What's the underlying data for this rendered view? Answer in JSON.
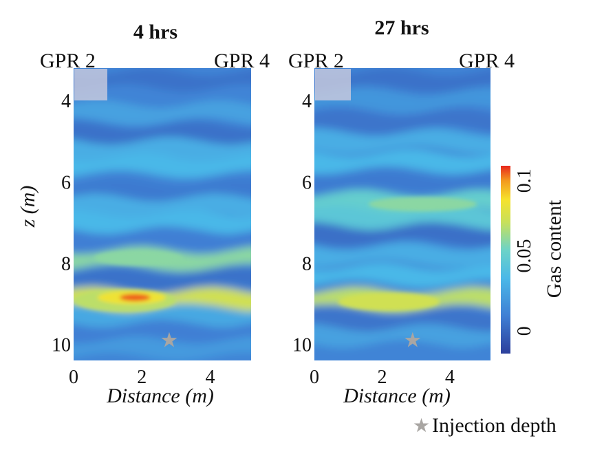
{
  "chart_data": [
    {
      "type": "heatmap",
      "title": "4 hrs",
      "xlabel": "Distance (m)",
      "ylabel": "z (m)",
      "xlim": [
        0,
        5.2
      ],
      "ylim": [
        3.2,
        10.4
      ],
      "xticks": [
        0,
        2,
        4
      ],
      "yticks": [
        4,
        6,
        8,
        10
      ],
      "borehole_labels": [
        "GPR 2",
        "GPR 4"
      ],
      "injection_point": {
        "x": 2.8,
        "z": 9.9
      },
      "bands": [
        {
          "z": 3.5,
          "gas": 0.005
        },
        {
          "z": 3.9,
          "gas": 0.012
        },
        {
          "z": 4.3,
          "gas": 0.025
        },
        {
          "z": 4.8,
          "gas": 0.005
        },
        {
          "z": 5.2,
          "gas": 0.03
        },
        {
          "z": 5.6,
          "gas": 0.035
        },
        {
          "z": 6.2,
          "gas": 0.008
        },
        {
          "z": 6.6,
          "gas": 0.03
        },
        {
          "z": 7.0,
          "gas": 0.035
        },
        {
          "z": 7.4,
          "gas": 0.01
        },
        {
          "z": 7.9,
          "gas": 0.06
        },
        {
          "z": 8.4,
          "gas": 0.005
        },
        {
          "z": 8.9,
          "gas": 0.075
        },
        {
          "z": 9.3,
          "gas": 0.028
        },
        {
          "z": 9.7,
          "gas": 0.01
        },
        {
          "z": 10.1,
          "gas": 0.022
        }
      ],
      "hotspots": [
        {
          "x": 1.5,
          "z": 8.92,
          "rx": 1.5,
          "rz": 0.28,
          "gas": 0.07
        },
        {
          "x": 1.7,
          "z": 8.85,
          "rx": 1.0,
          "rz": 0.17,
          "gas": 0.085
        },
        {
          "x": 1.8,
          "z": 8.85,
          "rx": 0.45,
          "rz": 0.09,
          "gas": 0.105
        },
        {
          "x": 1.9,
          "z": 7.88,
          "rx": 1.3,
          "rz": 0.18,
          "gas": 0.06
        }
      ]
    },
    {
      "type": "heatmap",
      "title": "27 hrs",
      "xlabel": "Distance (m)",
      "ylabel": "",
      "xlim": [
        0,
        5.2
      ],
      "ylim": [
        3.2,
        10.4
      ],
      "xticks": [
        0,
        2,
        4
      ],
      "yticks": [
        4,
        6,
        8,
        10
      ],
      "borehole_labels": [
        "GPR 2",
        "GPR 4"
      ],
      "injection_point": {
        "x": 2.9,
        "z": 9.9
      },
      "bands": [
        {
          "z": 3.5,
          "gas": 0.005
        },
        {
          "z": 4.0,
          "gas": 0.02
        },
        {
          "z": 4.5,
          "gas": 0.006
        },
        {
          "z": 5.0,
          "gas": 0.03
        },
        {
          "z": 5.5,
          "gas": 0.035
        },
        {
          "z": 6.0,
          "gas": 0.008
        },
        {
          "z": 6.5,
          "gas": 0.05
        },
        {
          "z": 6.9,
          "gas": 0.045
        },
        {
          "z": 7.3,
          "gas": 0.004
        },
        {
          "z": 7.8,
          "gas": 0.03
        },
        {
          "z": 8.3,
          "gas": 0.035
        },
        {
          "z": 8.9,
          "gas": 0.07
        },
        {
          "z": 9.4,
          "gas": 0.006
        },
        {
          "z": 9.8,
          "gas": 0.025
        },
        {
          "z": 10.2,
          "gas": 0.012
        }
      ],
      "hotspots": [
        {
          "x": 2.2,
          "z": 8.95,
          "rx": 1.5,
          "rz": 0.22,
          "gas": 0.075
        },
        {
          "x": 3.2,
          "z": 6.55,
          "rx": 1.6,
          "rz": 0.18,
          "gas": 0.06
        }
      ]
    }
  ],
  "colorbar": {
    "label": "Gas content",
    "min": -0.015,
    "max": 0.11,
    "ticks": [
      0,
      0.05,
      0.1
    ],
    "tick_labels": [
      "0",
      "0.05",
      "0.1"
    ]
  },
  "legend": {
    "symbol": "★",
    "label": "Injection depth"
  },
  "colors": {
    "marker": "#a9a6a3",
    "axis_text": "#111111",
    "overlay_box": "#c4c8dd"
  }
}
